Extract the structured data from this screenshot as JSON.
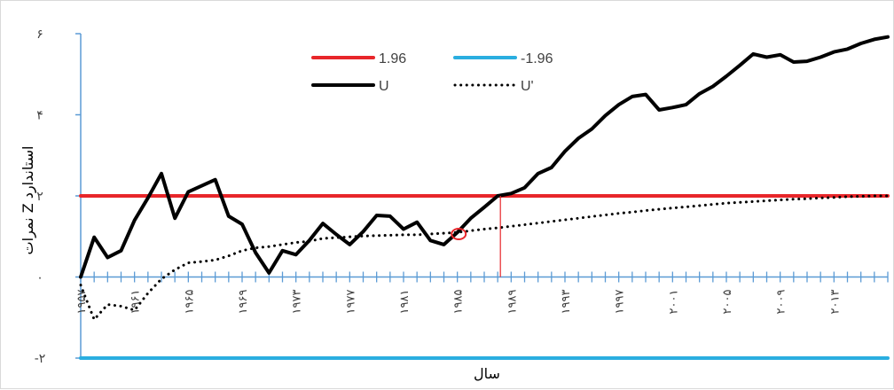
{
  "chart_data": {
    "type": "line",
    "xlabel": "سال",
    "ylabel": "نمرات Z استاندارد",
    "ylim": [
      -2,
      6
    ],
    "xlim": [
      1957,
      2017
    ],
    "y_ticks": [
      "-۲",
      "۰",
      "۲",
      "۴",
      "۶"
    ],
    "y_tick_values": [
      -2,
      0,
      2,
      4,
      6
    ],
    "x_ticks": [
      "۱۹۵۷",
      "۱۹۶۱",
      "۱۹۶۵",
      "۱۹۶۹",
      "۱۹۷۳",
      "۱۹۷۷",
      "۱۹۸۱",
      "۱۹۸۵",
      "۱۹۸۹",
      "۱۹۹۳",
      "۱۹۹۷",
      "۲۰۰۱",
      "۲۰۰۵",
      "۲۰۰۹",
      "۲۰۱۳"
    ],
    "x_tick_values": [
      1957,
      1961,
      1965,
      1969,
      1973,
      1977,
      1981,
      1985,
      1989,
      1993,
      1997,
      2001,
      2005,
      2009,
      2013
    ],
    "legend_position": "top",
    "series": [
      {
        "name": "1.96",
        "style": "solid",
        "color": "#e8262a",
        "x": [
          1957,
          2017
        ],
        "y": [
          2,
          2
        ]
      },
      {
        "name": "-1.96",
        "style": "solid",
        "color": "#2aaee0",
        "x": [
          1957,
          2017
        ],
        "y": [
          -2,
          -2
        ]
      },
      {
        "name": "U",
        "style": "solid",
        "color": "#000000",
        "x": [
          1957,
          1958,
          1959,
          1960,
          1961,
          1962,
          1963,
          1964,
          1965,
          1966,
          1967,
          1968,
          1969,
          1970,
          1971,
          1972,
          1973,
          1974,
          1975,
          1976,
          1977,
          1978,
          1979,
          1980,
          1981,
          1982,
          1983,
          1984,
          1985,
          1986,
          1987,
          1988,
          1989,
          1990,
          1991,
          1992,
          1993,
          1994,
          1995,
          1996,
          1997,
          1998,
          1999,
          2000,
          2001,
          2002,
          2003,
          2004,
          2005,
          2006,
          2007,
          2008,
          2009,
          2010,
          2011,
          2012,
          2013,
          2014,
          2015,
          2016,
          2017
        ],
        "y": [
          0,
          0.98,
          0.48,
          0.65,
          1.4,
          1.95,
          2.55,
          1.45,
          2.1,
          2.25,
          2.4,
          1.5,
          1.3,
          0.6,
          0.1,
          0.65,
          0.55,
          0.9,
          1.32,
          1.05,
          0.8,
          1.12,
          1.52,
          1.5,
          1.18,
          1.35,
          0.9,
          0.8,
          1.1,
          1.45,
          1.72,
          2.0,
          2.06,
          2.2,
          2.55,
          2.7,
          3.1,
          3.42,
          3.65,
          3.98,
          4.25,
          4.45,
          4.5,
          4.12,
          4.18,
          4.25,
          4.52,
          4.7,
          4.95,
          5.22,
          5.5,
          5.42,
          5.48,
          5.3,
          5.32,
          5.42,
          5.55,
          5.62,
          5.76,
          5.86,
          5.92
        ]
      },
      {
        "name": "U'",
        "style": "dotted",
        "color": "#000000",
        "x": [
          1957,
          1958,
          1959,
          1960,
          1961,
          1962,
          1963,
          1964,
          1965,
          1966,
          1967,
          1968,
          1969,
          1970,
          1971,
          1972,
          1973,
          1974,
          1975,
          1976,
          1977,
          1978,
          1979,
          1980,
          1981,
          1982,
          1983,
          1984,
          1985,
          1986,
          1987,
          1988,
          1989,
          1990,
          1991,
          1992,
          1993,
          1994,
          1995,
          1996,
          1997,
          1998,
          1999,
          2000,
          2001,
          2002,
          2003,
          2004,
          2005,
          2006,
          2007,
          2008,
          2009,
          2010,
          2011,
          2012,
          2013,
          2014,
          2015,
          2016,
          2017
        ],
        "y": [
          -0.2,
          -1.05,
          -0.68,
          -0.72,
          -0.82,
          -0.4,
          -0.05,
          0.18,
          0.35,
          0.38,
          0.42,
          0.52,
          0.65,
          0.72,
          0.75,
          0.8,
          0.85,
          0.88,
          0.95,
          0.97,
          0.99,
          1.01,
          1.02,
          1.03,
          1.04,
          1.04,
          1.06,
          1.08,
          1.1,
          1.14,
          1.18,
          1.21,
          1.25,
          1.29,
          1.33,
          1.37,
          1.41,
          1.45,
          1.49,
          1.53,
          1.57,
          1.6,
          1.64,
          1.67,
          1.7,
          1.73,
          1.76,
          1.79,
          1.82,
          1.84,
          1.86,
          1.88,
          1.9,
          1.92,
          1.93,
          1.95,
          1.96,
          1.98,
          1.99,
          2.0,
          2.0
        ]
      }
    ],
    "annotations": [
      {
        "type": "circle-marker",
        "x": 1985.1,
        "y": 1.06,
        "color": "#e8262a"
      },
      {
        "type": "vertical-line",
        "x": 1988.2,
        "y_from": 0,
        "y_to": 2.0,
        "color": "#e8262a"
      }
    ]
  }
}
